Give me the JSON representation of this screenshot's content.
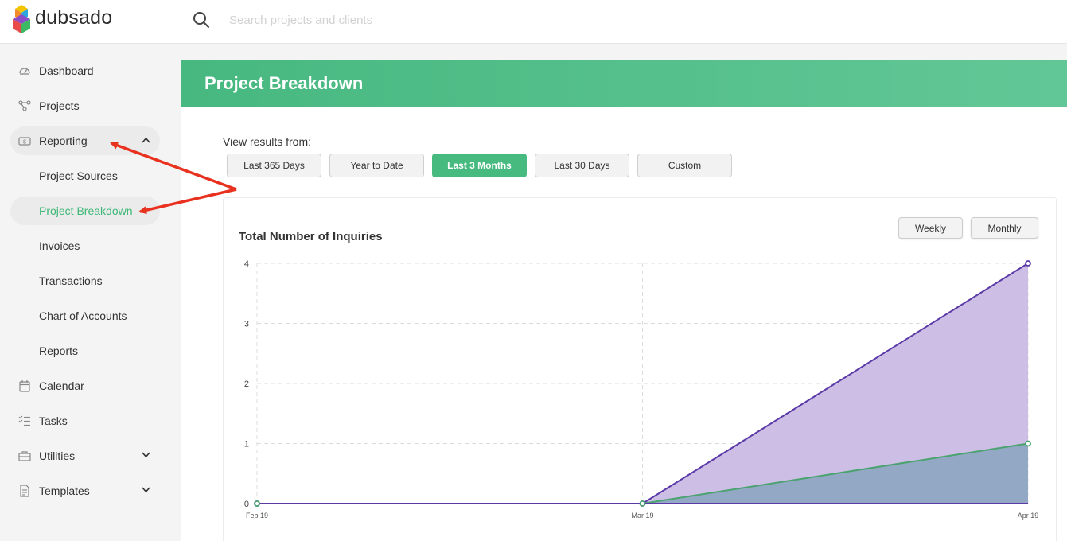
{
  "brand": {
    "name": "dubsado"
  },
  "search": {
    "placeholder": "Search projects and clients"
  },
  "sidebar": {
    "items": [
      {
        "label": "Dashboard",
        "icon": "gauge-icon"
      },
      {
        "label": "Projects",
        "icon": "nodes-icon"
      },
      {
        "label": "Reporting",
        "icon": "money-icon",
        "expanded": true
      },
      {
        "label": "Project Sources"
      },
      {
        "label": "Project Breakdown",
        "active": true
      },
      {
        "label": "Invoices"
      },
      {
        "label": "Transactions"
      },
      {
        "label": "Chart of Accounts"
      },
      {
        "label": "Reports"
      },
      {
        "label": "Calendar",
        "icon": "calendar-icon"
      },
      {
        "label": "Tasks",
        "icon": "checklist-icon"
      },
      {
        "label": "Utilities",
        "icon": "toolbox-icon"
      },
      {
        "label": "Templates",
        "icon": "document-icon"
      }
    ]
  },
  "main": {
    "title": "Project Breakdown",
    "filter_label": "View results from:",
    "range_buttons": [
      "Last 365 Days",
      "Year to Date",
      "Last 3 Months",
      "Last 30 Days",
      "Custom"
    ],
    "active_range": "Last 3 Months",
    "chart_card": {
      "title": "Total Number of Inquiries",
      "toggle": [
        "Weekly",
        "Monthly"
      ]
    }
  },
  "colors": {
    "accent": "#46ba7f",
    "series_1": "#5b3aa8",
    "series_1_fill": "#c9bbe3",
    "series_2": "#4aa36f",
    "series_2_fill": "#8fa7c2",
    "annotation": "#e8321f"
  },
  "chart_data": {
    "type": "area",
    "title": "Total Number of Inquiries",
    "x": [
      "Feb 19",
      "Mar 19",
      "Apr 19"
    ],
    "series": [
      {
        "values": [
          0,
          0,
          4
        ]
      },
      {
        "values": [
          0,
          0,
          1
        ]
      }
    ],
    "yticks": [
      0,
      1,
      2,
      3,
      4
    ],
    "ylim": [
      0,
      4
    ],
    "grid": true
  }
}
